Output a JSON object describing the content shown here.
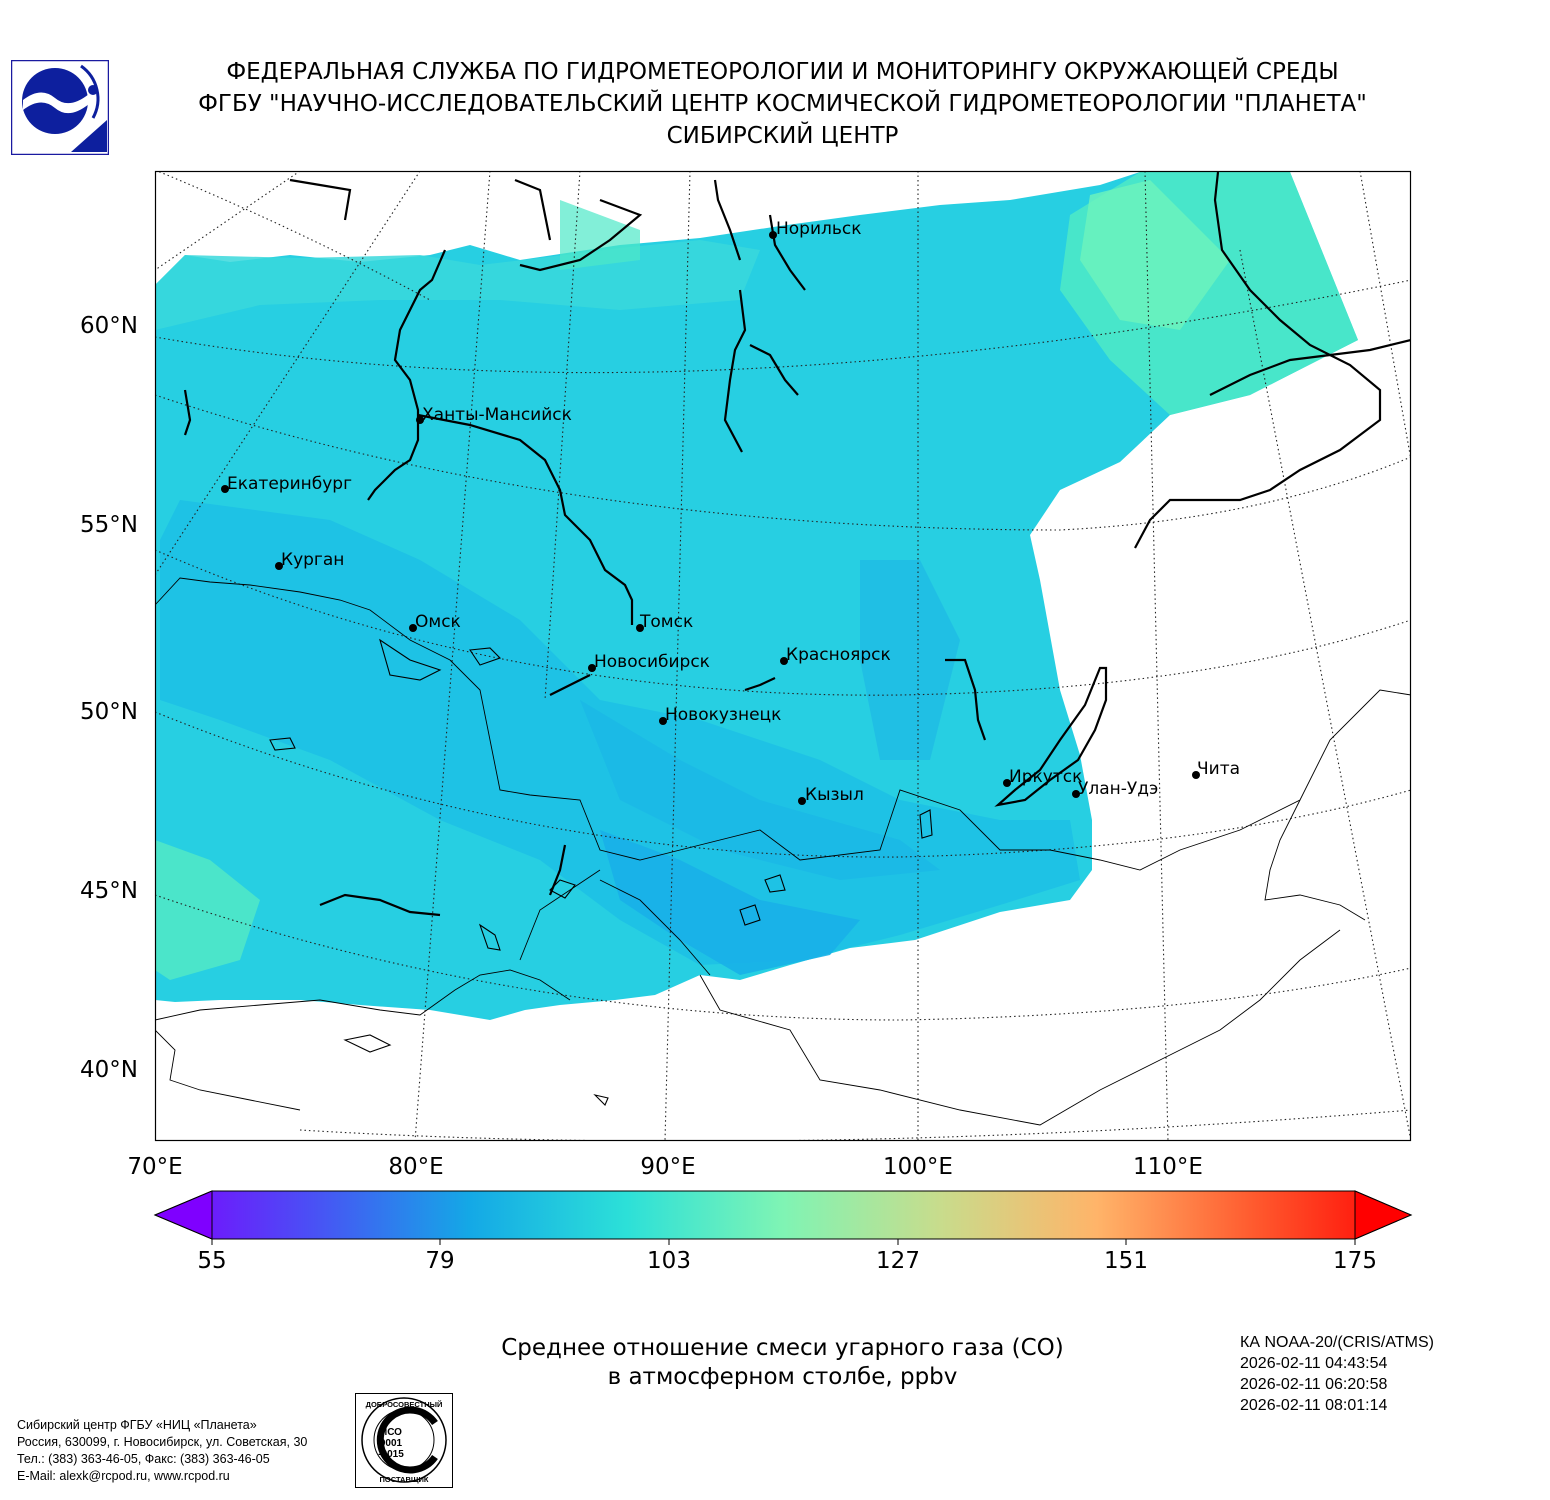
{
  "header": {
    "line1": "ФЕДЕРАЛЬНАЯ СЛУЖБА ПО ГИДРОМЕТЕОРОЛОГИИ И МОНИТОРИНГУ ОКРУЖАЮЩЕЙ СРЕДЫ",
    "line2": "ФГБУ \"НАУЧНО-ИССЛЕДОВАТЕЛЬСКИЙ ЦЕНТР КОСМИЧЕСКОЙ ГИДРОМЕТЕОРОЛОГИИ \"ПЛАНЕТА\"",
    "line3": "СИБИРСКИЙ ЦЕНТР"
  },
  "map": {
    "lat_labels": [
      "60°N",
      "55°N",
      "50°N",
      "45°N",
      "40°N"
    ],
    "lon_labels": [
      "70°E",
      "80°E",
      "90°E",
      "100°E",
      "110°E"
    ],
    "cities": [
      "Норильск",
      "Ханты-Мансийск",
      "Екатеринбург",
      "Курган",
      "Омск",
      "Томск",
      "Новосибирск",
      "Красноярск",
      "Новокузнецк",
      "Иркутск",
      "Улан-Удэ",
      "Чита",
      "Кызыл"
    ]
  },
  "colorbar": {
    "ticks": [
      "55",
      "79",
      "103",
      "127",
      "151",
      "175"
    ],
    "min": 55,
    "max": 175,
    "colors": [
      "#7f00ff",
      "#4a50f5",
      "#14a8e6",
      "#2ce0d8",
      "#7ff4b4",
      "#c8dc8c",
      "#ffb469",
      "#ff5a2e",
      "#ff0000"
    ]
  },
  "caption": {
    "line1": "Среднее отношение смеси угарного газа (CO)",
    "line2": "в атмосферном столбе, ppbv"
  },
  "satellite": {
    "name": "КА NOAA-20/(CRIS/ATMS)",
    "time1": "2026-02-11 04:43:54",
    "time2": "2026-02-11 06:20:58",
    "time3": "2026-02-11 08:01:14"
  },
  "address": {
    "line1": "Сибирский центр ФГБУ «НИЦ «Планета»",
    "line2": "Россия, 630099, г. Новосибирск, ул. Советская, 30",
    "line3": "Тел.: (383) 363-46-05, Факс: (383) 363-46-05",
    "line4": "E-Mail: alexk@rcpod.ru, www.rcpod.ru"
  },
  "iso_badge": {
    "top": "ДОБРОСОВЕСТНЫЙ",
    "mid1": "ИСО",
    "mid2": "9001",
    "mid3": "-2015",
    "bottom": "ПОСТАВЩИК"
  }
}
